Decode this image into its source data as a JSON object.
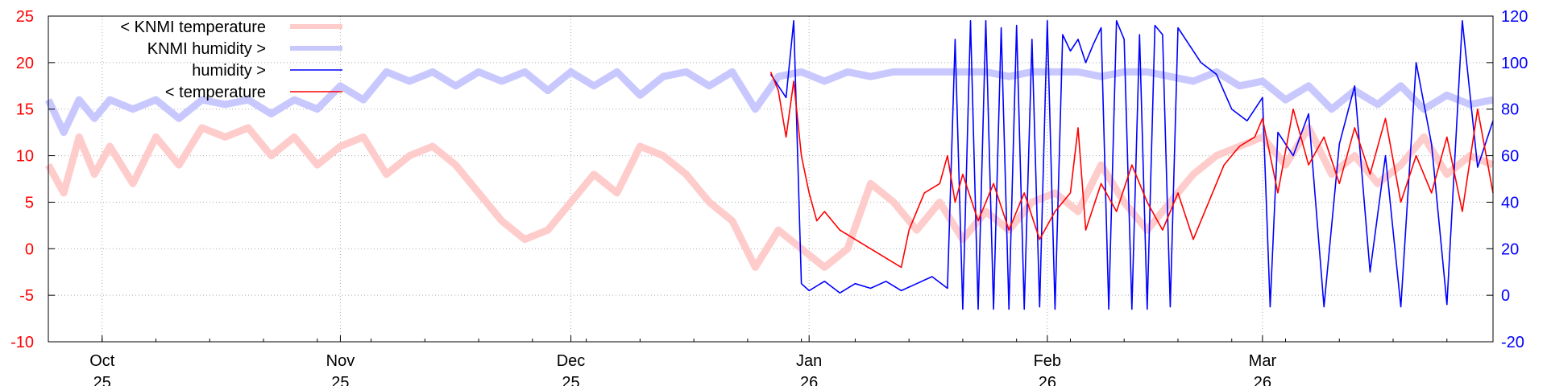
{
  "chart_data": {
    "type": "line",
    "title": "",
    "grid": true,
    "legend_position": "top-left",
    "x_axis": {
      "range": [
        "2025-09-24",
        "2026-03-31"
      ],
      "ticks": [
        {
          "date": "2025-10-01",
          "month": "Oct",
          "year": "25"
        },
        {
          "date": "2025-11-01",
          "month": "Nov",
          "year": "25"
        },
        {
          "date": "2025-12-01",
          "month": "Dec",
          "year": "25"
        },
        {
          "date": "2026-01-01",
          "month": "Jan",
          "year": "26"
        },
        {
          "date": "2026-02-01",
          "month": "Feb",
          "year": "26"
        },
        {
          "date": "2026-03-01",
          "month": "Mar",
          "year": "26"
        }
      ]
    },
    "y_left": {
      "label": "",
      "range": [
        -10,
        25
      ],
      "ticks": [
        -10,
        -5,
        0,
        5,
        10,
        15,
        20,
        25
      ],
      "color": "#ff0000"
    },
    "y_right": {
      "label": "",
      "range": [
        -20,
        120
      ],
      "ticks": [
        -20,
        0,
        20,
        40,
        60,
        80,
        100,
        120
      ],
      "color": "#0000ff"
    },
    "series": [
      {
        "name": "< KNMI temperature",
        "axis": "left",
        "color": "#ffcccc",
        "points": [
          [
            "2025-09-24",
            9
          ],
          [
            "2025-09-26",
            6
          ],
          [
            "2025-09-28",
            12
          ],
          [
            "2025-09-30",
            8
          ],
          [
            "2025-10-02",
            11
          ],
          [
            "2025-10-05",
            7
          ],
          [
            "2025-10-08",
            12
          ],
          [
            "2025-10-11",
            9
          ],
          [
            "2025-10-14",
            13
          ],
          [
            "2025-10-17",
            12
          ],
          [
            "2025-10-20",
            13
          ],
          [
            "2025-10-23",
            10
          ],
          [
            "2025-10-26",
            12
          ],
          [
            "2025-10-29",
            9
          ],
          [
            "2025-11-01",
            11
          ],
          [
            "2025-11-04",
            12
          ],
          [
            "2025-11-07",
            8
          ],
          [
            "2025-11-10",
            10
          ],
          [
            "2025-11-13",
            11
          ],
          [
            "2025-11-16",
            9
          ],
          [
            "2025-11-19",
            6
          ],
          [
            "2025-11-22",
            3
          ],
          [
            "2025-11-25",
            1
          ],
          [
            "2025-11-28",
            2
          ],
          [
            "2025-12-01",
            5
          ],
          [
            "2025-12-04",
            8
          ],
          [
            "2025-12-07",
            6
          ],
          [
            "2025-12-10",
            11
          ],
          [
            "2025-12-13",
            10
          ],
          [
            "2025-12-16",
            8
          ],
          [
            "2025-12-19",
            5
          ],
          [
            "2025-12-22",
            3
          ],
          [
            "2025-12-25",
            -2
          ],
          [
            "2025-12-28",
            2
          ],
          [
            "2025-12-31",
            0
          ],
          [
            "2026-01-03",
            -2
          ],
          [
            "2026-01-06",
            0
          ],
          [
            "2026-01-09",
            7
          ],
          [
            "2026-01-12",
            5
          ],
          [
            "2026-01-15",
            2
          ],
          [
            "2026-01-18",
            5
          ],
          [
            "2026-01-21",
            1
          ],
          [
            "2026-01-24",
            4
          ],
          [
            "2026-01-27",
            2
          ],
          [
            "2026-01-30",
            5
          ],
          [
            "2026-02-02",
            6
          ],
          [
            "2026-02-05",
            4
          ],
          [
            "2026-02-08",
            9
          ],
          [
            "2026-02-11",
            5
          ],
          [
            "2026-02-14",
            2
          ],
          [
            "2026-02-17",
            5
          ],
          [
            "2026-02-20",
            8
          ],
          [
            "2026-02-23",
            10
          ],
          [
            "2026-02-26",
            11
          ],
          [
            "2026-03-01",
            12
          ],
          [
            "2026-03-04",
            9
          ],
          [
            "2026-03-07",
            13
          ],
          [
            "2026-03-10",
            8
          ],
          [
            "2026-03-13",
            10
          ],
          [
            "2026-03-16",
            7
          ],
          [
            "2026-03-19",
            9
          ],
          [
            "2026-03-22",
            12
          ],
          [
            "2026-03-25",
            8
          ],
          [
            "2026-03-28",
            10
          ],
          [
            "2026-03-31",
            9
          ]
        ]
      },
      {
        "name": "KNMI humidity >",
        "axis": "right",
        "color": "#c8c8ff",
        "points": [
          [
            "2025-09-24",
            84
          ],
          [
            "2025-09-26",
            70
          ],
          [
            "2025-09-28",
            84
          ],
          [
            "2025-09-30",
            76
          ],
          [
            "2025-10-02",
            84
          ],
          [
            "2025-10-05",
            80
          ],
          [
            "2025-10-08",
            84
          ],
          [
            "2025-10-11",
            76
          ],
          [
            "2025-10-14",
            84
          ],
          [
            "2025-10-17",
            82
          ],
          [
            "2025-10-20",
            84
          ],
          [
            "2025-10-23",
            78
          ],
          [
            "2025-10-26",
            84
          ],
          [
            "2025-10-29",
            80
          ],
          [
            "2025-11-01",
            90
          ],
          [
            "2025-11-04",
            84
          ],
          [
            "2025-11-07",
            96
          ],
          [
            "2025-11-10",
            92
          ],
          [
            "2025-11-13",
            96
          ],
          [
            "2025-11-16",
            90
          ],
          [
            "2025-11-19",
            96
          ],
          [
            "2025-11-22",
            92
          ],
          [
            "2025-11-25",
            96
          ],
          [
            "2025-11-28",
            88
          ],
          [
            "2025-12-01",
            96
          ],
          [
            "2025-12-04",
            90
          ],
          [
            "2025-12-07",
            96
          ],
          [
            "2025-12-10",
            86
          ],
          [
            "2025-12-13",
            94
          ],
          [
            "2025-12-16",
            96
          ],
          [
            "2025-12-19",
            90
          ],
          [
            "2025-12-22",
            96
          ],
          [
            "2025-12-25",
            80
          ],
          [
            "2025-12-28",
            94
          ],
          [
            "2025-12-31",
            96
          ],
          [
            "2026-01-03",
            92
          ],
          [
            "2026-01-06",
            96
          ],
          [
            "2026-01-09",
            94
          ],
          [
            "2026-01-12",
            96
          ],
          [
            "2026-01-15",
            96
          ],
          [
            "2026-01-18",
            96
          ],
          [
            "2026-01-21",
            96
          ],
          [
            "2026-01-24",
            96
          ],
          [
            "2026-01-27",
            94
          ],
          [
            "2026-01-30",
            96
          ],
          [
            "2026-02-02",
            96
          ],
          [
            "2026-02-05",
            96
          ],
          [
            "2026-02-08",
            94
          ],
          [
            "2026-02-11",
            96
          ],
          [
            "2026-02-14",
            96
          ],
          [
            "2026-02-17",
            94
          ],
          [
            "2026-02-20",
            92
          ],
          [
            "2026-02-23",
            96
          ],
          [
            "2026-02-26",
            90
          ],
          [
            "2026-03-01",
            92
          ],
          [
            "2026-03-04",
            84
          ],
          [
            "2026-03-07",
            90
          ],
          [
            "2026-03-10",
            80
          ],
          [
            "2026-03-13",
            88
          ],
          [
            "2026-03-16",
            82
          ],
          [
            "2026-03-19",
            90
          ],
          [
            "2026-03-22",
            80
          ],
          [
            "2026-03-25",
            86
          ],
          [
            "2026-03-28",
            82
          ],
          [
            "2026-03-31",
            84
          ]
        ]
      },
      {
        "name": "humidity >",
        "axis": "right",
        "color": "#0000ff",
        "points": [
          [
            "2025-12-27",
            95
          ],
          [
            "2025-12-28",
            90
          ],
          [
            "2025-12-29",
            85
          ],
          [
            "2025-12-30",
            118
          ],
          [
            "2025-12-31",
            5
          ],
          [
            "2026-01-01",
            2
          ],
          [
            "2026-01-03",
            6
          ],
          [
            "2026-01-05",
            1
          ],
          [
            "2026-01-07",
            5
          ],
          [
            "2026-01-09",
            3
          ],
          [
            "2026-01-11",
            6
          ],
          [
            "2026-01-13",
            2
          ],
          [
            "2026-01-15",
            5
          ],
          [
            "2026-01-17",
            8
          ],
          [
            "2026-01-19",
            3
          ],
          [
            "2026-01-20",
            110
          ],
          [
            "2026-01-21",
            -6
          ],
          [
            "2026-01-22",
            118
          ],
          [
            "2026-01-23",
            -6
          ],
          [
            "2026-01-24",
            118
          ],
          [
            "2026-01-25",
            -6
          ],
          [
            "2026-01-26",
            115
          ],
          [
            "2026-01-27",
            -6
          ],
          [
            "2026-01-28",
            116
          ],
          [
            "2026-01-29",
            -6
          ],
          [
            "2026-01-30",
            110
          ],
          [
            "2026-01-31",
            -5
          ],
          [
            "2026-02-01",
            118
          ],
          [
            "2026-02-02",
            -6
          ],
          [
            "2026-02-03",
            112
          ],
          [
            "2026-02-04",
            105
          ],
          [
            "2026-02-05",
            110
          ],
          [
            "2026-02-06",
            100
          ],
          [
            "2026-02-07",
            108
          ],
          [
            "2026-02-08",
            115
          ],
          [
            "2026-02-09",
            -6
          ],
          [
            "2026-02-10",
            118
          ],
          [
            "2026-02-11",
            110
          ],
          [
            "2026-02-12",
            -6
          ],
          [
            "2026-02-13",
            112
          ],
          [
            "2026-02-14",
            -6
          ],
          [
            "2026-02-15",
            116
          ],
          [
            "2026-02-16",
            112
          ],
          [
            "2026-02-17",
            -5
          ],
          [
            "2026-02-18",
            115
          ],
          [
            "2026-02-19",
            110
          ],
          [
            "2026-02-21",
            100
          ],
          [
            "2026-02-23",
            95
          ],
          [
            "2026-02-25",
            80
          ],
          [
            "2026-02-27",
            75
          ],
          [
            "2026-03-01",
            85
          ],
          [
            "2026-03-02",
            -5
          ],
          [
            "2026-03-03",
            70
          ],
          [
            "2026-03-05",
            60
          ],
          [
            "2026-03-07",
            78
          ],
          [
            "2026-03-09",
            -5
          ],
          [
            "2026-03-11",
            65
          ],
          [
            "2026-03-13",
            90
          ],
          [
            "2026-03-15",
            10
          ],
          [
            "2026-03-17",
            60
          ],
          [
            "2026-03-19",
            -5
          ],
          [
            "2026-03-21",
            100
          ],
          [
            "2026-03-23",
            65
          ],
          [
            "2026-03-25",
            -4
          ],
          [
            "2026-03-27",
            118
          ],
          [
            "2026-03-29",
            55
          ],
          [
            "2026-03-31",
            75
          ]
        ]
      },
      {
        "name": "< temperature",
        "axis": "left",
        "color": "#ff0000",
        "points": [
          [
            "2025-12-27",
            19
          ],
          [
            "2025-12-28",
            17
          ],
          [
            "2025-12-29",
            12
          ],
          [
            "2025-12-30",
            18
          ],
          [
            "2025-12-31",
            10
          ],
          [
            "2026-01-01",
            6
          ],
          [
            "2026-01-02",
            3
          ],
          [
            "2026-01-03",
            4
          ],
          [
            "2026-01-05",
            2
          ],
          [
            "2026-01-07",
            1
          ],
          [
            "2026-01-09",
            0
          ],
          [
            "2026-01-11",
            -1
          ],
          [
            "2026-01-13",
            -2
          ],
          [
            "2026-01-14",
            2
          ],
          [
            "2026-01-16",
            6
          ],
          [
            "2026-01-18",
            7
          ],
          [
            "2026-01-19",
            10
          ],
          [
            "2026-01-20",
            5
          ],
          [
            "2026-01-21",
            8
          ],
          [
            "2026-01-23",
            3
          ],
          [
            "2026-01-25",
            7
          ],
          [
            "2026-01-27",
            2
          ],
          [
            "2026-01-29",
            6
          ],
          [
            "2026-01-31",
            1
          ],
          [
            "2026-02-02",
            4
          ],
          [
            "2026-02-04",
            6
          ],
          [
            "2026-02-05",
            13
          ],
          [
            "2026-02-06",
            2
          ],
          [
            "2026-02-08",
            7
          ],
          [
            "2026-02-10",
            4
          ],
          [
            "2026-02-12",
            9
          ],
          [
            "2026-02-14",
            5
          ],
          [
            "2026-02-16",
            2
          ],
          [
            "2026-02-18",
            6
          ],
          [
            "2026-02-20",
            1
          ],
          [
            "2026-02-22",
            5
          ],
          [
            "2026-02-24",
            9
          ],
          [
            "2026-02-26",
            11
          ],
          [
            "2026-02-28",
            12
          ],
          [
            "2026-03-01",
            14
          ],
          [
            "2026-03-03",
            6
          ],
          [
            "2026-03-05",
            15
          ],
          [
            "2026-03-07",
            9
          ],
          [
            "2026-03-09",
            12
          ],
          [
            "2026-03-11",
            7
          ],
          [
            "2026-03-13",
            13
          ],
          [
            "2026-03-15",
            8
          ],
          [
            "2026-03-17",
            14
          ],
          [
            "2026-03-19",
            5
          ],
          [
            "2026-03-21",
            10
          ],
          [
            "2026-03-23",
            6
          ],
          [
            "2026-03-25",
            12
          ],
          [
            "2026-03-27",
            4
          ],
          [
            "2026-03-29",
            15
          ],
          [
            "2026-03-31",
            6
          ]
        ]
      }
    ]
  }
}
